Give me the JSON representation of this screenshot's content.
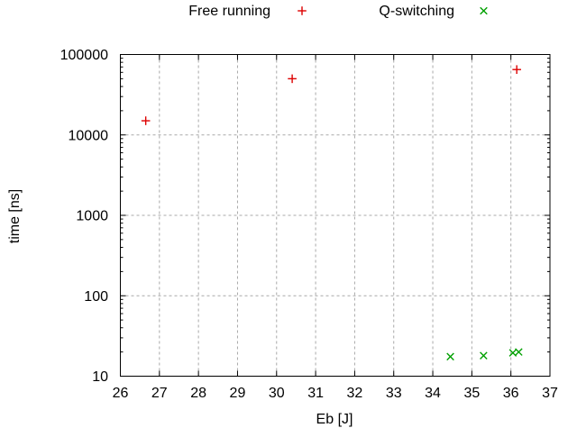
{
  "chart_data": {
    "type": "scatter",
    "title": "",
    "xlabel": "Eb [J]",
    "ylabel": "time [ns]",
    "xlim": [
      26,
      37
    ],
    "ylim": [
      10,
      100000
    ],
    "yscale": "log",
    "grid": true,
    "legend_position": "top-center-outside",
    "x_ticks": [
      26,
      27,
      28,
      29,
      30,
      31,
      32,
      33,
      34,
      35,
      36,
      37
    ],
    "y_ticks": [
      10,
      100,
      1000,
      10000,
      100000
    ],
    "series": [
      {
        "name": "Free running",
        "marker": "plus",
        "color": "#dd0000",
        "points": [
          [
            26.65,
            15000
          ],
          [
            30.4,
            50000
          ],
          [
            36.15,
            65000
          ]
        ]
      },
      {
        "name": "Q-switching",
        "marker": "cross",
        "color": "#00a000",
        "points": [
          [
            34.45,
            17.5
          ],
          [
            35.3,
            18
          ],
          [
            36.05,
            19.5
          ],
          [
            36.2,
            20
          ]
        ]
      }
    ]
  },
  "colors": {
    "background": "#ffffff",
    "axis": "#000000",
    "grid": "#a8a8a8",
    "text": "#000000"
  }
}
